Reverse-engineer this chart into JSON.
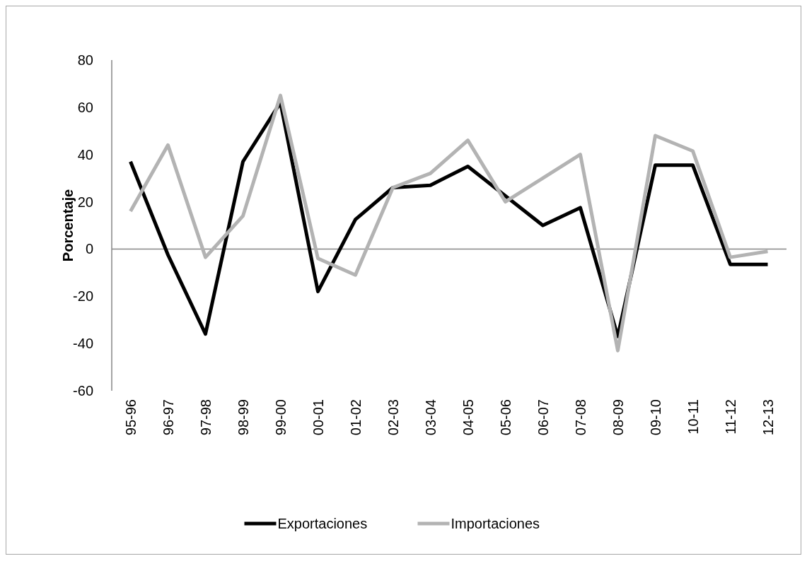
{
  "chart_data": {
    "type": "line",
    "ylabel": "Porcentaje",
    "categories": [
      "95-96",
      "96-97",
      "97-98",
      "98-99",
      "99-00",
      "00-01",
      "01-02",
      "02-03",
      "03-04",
      "04-05",
      "05-06",
      "06-07",
      "07-08",
      "08-09",
      "09-10",
      "10-11",
      "11-12",
      "12-13"
    ],
    "series": [
      {
        "name": "Exportaciones",
        "color": "#000000",
        "values": [
          37,
          -2.5,
          -36,
          37,
          62,
          -18,
          12.5,
          26,
          27,
          35,
          22.5,
          10,
          17.5,
          -37,
          35.5,
          35.5,
          -6.5,
          -6.5
        ]
      },
      {
        "name": "Importaciones",
        "color": "#b3b3b3",
        "values": [
          16,
          44,
          -3.5,
          14,
          65,
          -4,
          -11,
          26,
          32,
          46,
          20,
          30,
          40,
          -43,
          48,
          41.5,
          -3.5,
          -1
        ]
      }
    ],
    "ylim": [
      -60,
      80
    ],
    "yticks": [
      -60,
      -40,
      -20,
      0,
      20,
      40,
      60,
      80
    ],
    "legend": "bottom",
    "marker": "none",
    "line_style": "solid"
  }
}
